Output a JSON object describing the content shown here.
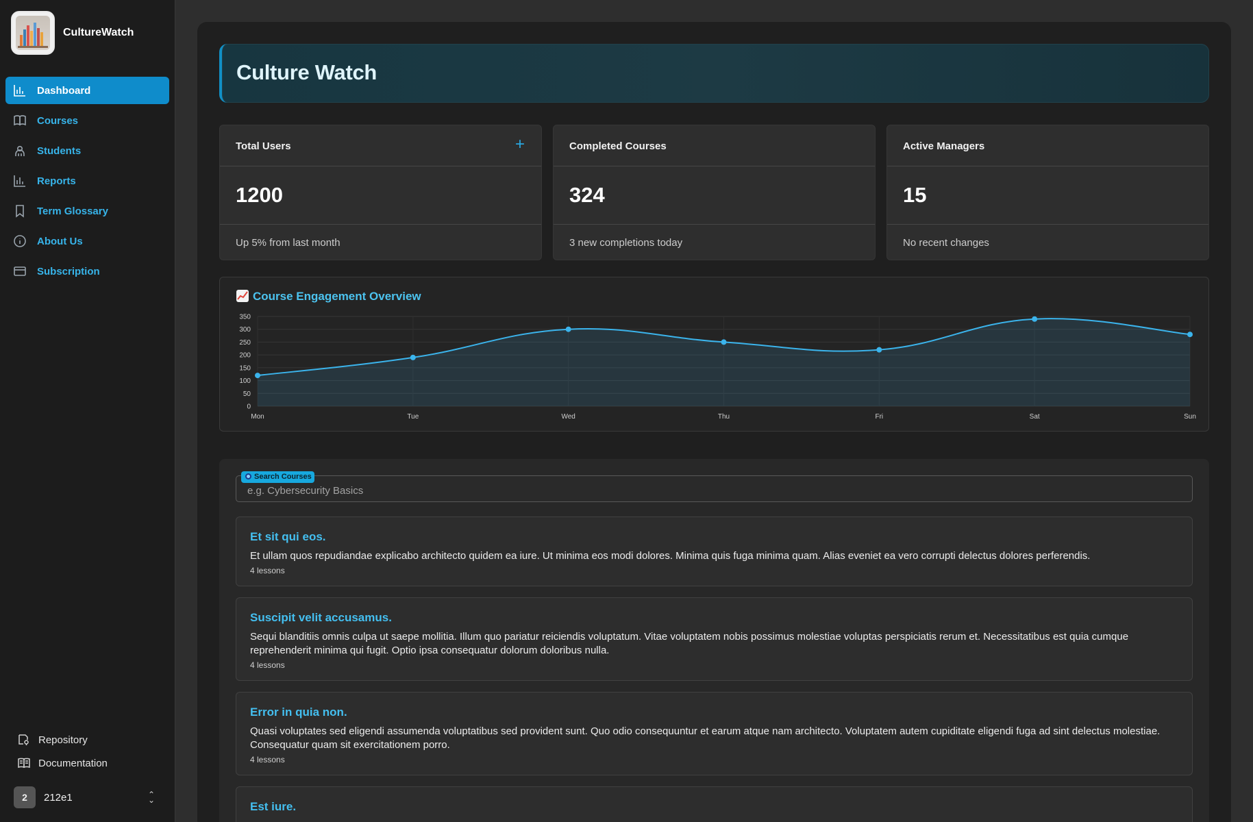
{
  "app": {
    "name": "CultureWatch"
  },
  "nav": {
    "items": [
      {
        "label": "Dashboard",
        "icon": "bar-chart-icon",
        "active": true
      },
      {
        "label": "Courses",
        "icon": "book-icon"
      },
      {
        "label": "Students",
        "icon": "user-icon"
      },
      {
        "label": "Reports",
        "icon": "bar-chart-icon"
      },
      {
        "label": "Term Glossary",
        "icon": "bookmark-icon"
      },
      {
        "label": "About Us",
        "icon": "info-icon"
      },
      {
        "label": "Subscription",
        "icon": "credit-card-icon"
      }
    ]
  },
  "footer_links": {
    "repository": "Repository",
    "documentation": "Documentation"
  },
  "user": {
    "avatar": "2",
    "name": "212e1"
  },
  "page": {
    "title": "Culture Watch"
  },
  "stats": [
    {
      "title": "Total Users",
      "value": "1200",
      "note": "Up 5% from last month"
    },
    {
      "title": "Completed Courses",
      "value": "324",
      "note": "3 new completions today"
    },
    {
      "title": "Active Managers",
      "value": "15",
      "note": "No recent changes"
    }
  ],
  "stats_add_symbol": "+",
  "chart": {
    "title": "Course Engagement Overview"
  },
  "chart_data": {
    "type": "area",
    "categories": [
      "Mon",
      "Tue",
      "Wed",
      "Thu",
      "Fri",
      "Sat",
      "Sun"
    ],
    "values": [
      120,
      190,
      300,
      250,
      220,
      340,
      280
    ],
    "ylim": [
      0,
      350
    ],
    "yticks": [
      "0",
      "50",
      "100",
      "150",
      "200",
      "250",
      "300",
      "350"
    ],
    "grid": true,
    "color": "#3bb4ec"
  },
  "search": {
    "label": "Search Courses",
    "placeholder": "e.g. Cybersecurity Basics",
    "value": ""
  },
  "courses": [
    {
      "title": "Et sit qui eos.",
      "description": "Et ullam quos repudiandae explicabo architecto quidem ea iure. Ut minima eos modi dolores. Minima quis fuga minima quam. Alias eveniet ea vero corrupti delectus dolores perferendis.",
      "lessons": "4 lessons"
    },
    {
      "title": "Suscipit velit accusamus.",
      "description": "Sequi blanditiis omnis culpa ut saepe mollitia. Illum quo pariatur reiciendis voluptatum. Vitae voluptatem nobis possimus molestiae voluptas perspiciatis rerum et. Necessitatibus est quia cumque reprehenderit minima qui fugit. Optio ipsa consequatur dolorum doloribus nulla.",
      "lessons": "4 lessons"
    },
    {
      "title": "Error in quia non.",
      "description": "Quasi voluptates sed eligendi assumenda voluptatibus sed provident sunt. Quo odio consequuntur et earum atque nam architecto. Voluptatem autem cupiditate eligendi fuga ad sint delectus molestiae. Consequatur quam sit exercitationem porro.",
      "lessons": "4 lessons"
    },
    {
      "title": "Est iure.",
      "description": "",
      "lessons": ""
    }
  ]
}
